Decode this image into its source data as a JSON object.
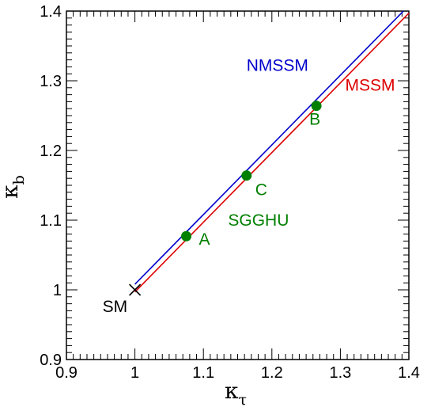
{
  "chart_data": {
    "type": "line",
    "x_axis": {
      "label_main": "κ",
      "label_sub": "τ",
      "range": [
        0.9,
        1.4
      ],
      "tick_labels": [
        "0.9",
        "1",
        "1.1",
        "1.2",
        "1.3",
        "1.4"
      ],
      "tick_values": [
        0.9,
        1.0,
        1.1,
        1.2,
        1.3,
        1.4
      ]
    },
    "y_axis": {
      "label_main": "κ",
      "label_sub": "b",
      "range": [
        0.9,
        1.4
      ],
      "tick_labels": [
        "0.9",
        "1",
        "1.1",
        "1.2",
        "1.3",
        "1.4"
      ],
      "tick_values": [
        0.9,
        1.0,
        1.1,
        1.2,
        1.3,
        1.4
      ]
    },
    "grid": false,
    "series": [
      {
        "name": "NMSSM",
        "color": "#0000cc",
        "x": [
          1.0,
          1.392
        ],
        "y": [
          1.008,
          1.4
        ]
      },
      {
        "name": "MSSM",
        "color": "#dd0000",
        "x": [
          1.0,
          1.4
        ],
        "y": [
          0.997,
          1.397
        ]
      }
    ],
    "points": [
      {
        "label": "A",
        "x": 1.075,
        "y": 1.077,
        "color": "#008000",
        "marker": "circle"
      },
      {
        "label": "C",
        "x": 1.163,
        "y": 1.164,
        "color": "#008000",
        "marker": "circle"
      },
      {
        "label": "B",
        "x": 1.265,
        "y": 1.264,
        "color": "#008000",
        "marker": "circle"
      },
      {
        "label": "SM",
        "x": 1.0,
        "y": 1.0,
        "color": "#000000",
        "marker": "cross"
      }
    ],
    "annotations": [
      {
        "text": "NMSSM",
        "color": "#0000cc",
        "x": 1.163,
        "y": 1.314
      },
      {
        "text": "MSSM",
        "color": "#dd0000",
        "x": 1.307,
        "y": 1.286
      },
      {
        "text": "SGGHU",
        "color": "#008000",
        "x": 1.136,
        "y": 1.092
      }
    ]
  }
}
